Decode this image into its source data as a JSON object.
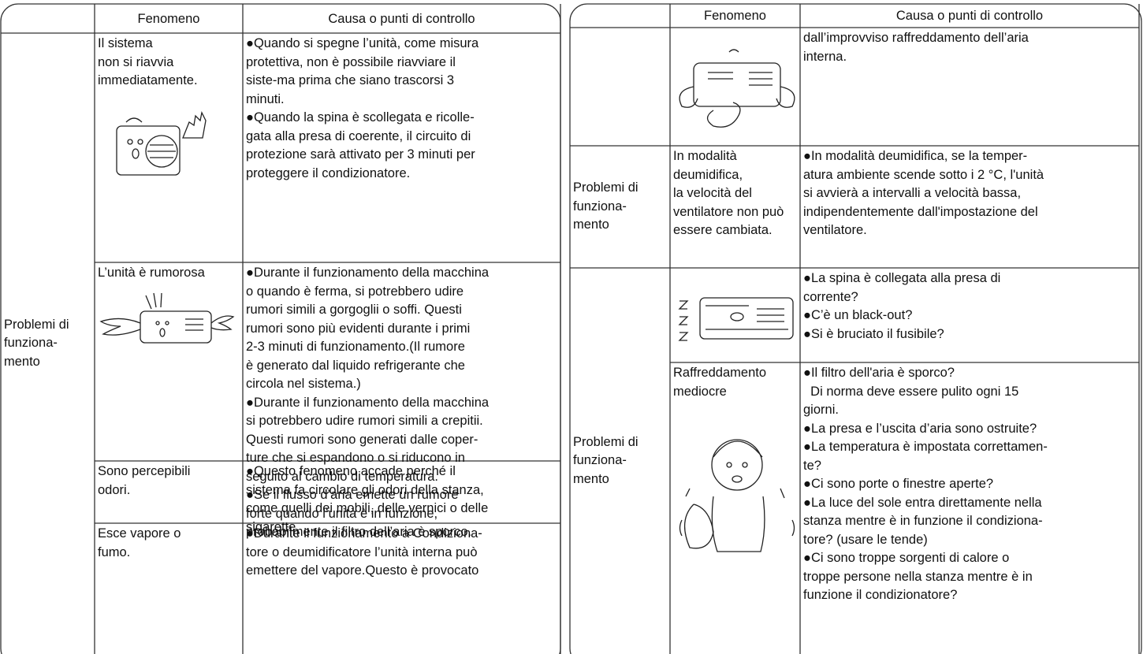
{
  "left_table": {
    "header": [
      "Fenomeno",
      "Causa o punti di controllo"
    ],
    "groups": [
      {
        "label": [
          "Problemi di",
          "funziona-",
          "mento"
        ],
        "rows": [
          {
            "phenomenon": [
              "Il sistema",
              "non si riavvia",
              "immediatamente."
            ],
            "cause": [
              "●Quando si spegne l’unità, come misura",
              "protettiva, non è possibile riavviare il",
              "siste-ma prima che siano trascorsi 3",
              "minuti.",
              "●Quando la spina è scollegata e ricolle-",
              "gata alla presa di coerente, il circuito di",
              "protezione sarà attivato per 3 minuti per",
              "proteggere il condizionatore."
            ]
          },
          {
            "phenomenon": [
              "L’unità è rumorosa"
            ],
            "cause": [
              "●Durante il funzionamento della macchina",
              "o quando è ferma, si potrebbero udire",
              "rumori simili a gorgoglii o soffi. Questi",
              "rumori sono più evidenti durante i primi",
              "2-3 minuti di funzionamento.(Il rumore",
              "è generato dal liquido refrigerante che",
              "circola nel sistema.)",
              "●Durante il funzionamento della macchina",
              "si potrebbero udire rumori simili a crepitii.",
              "Questi rumori sono generati dalle coper-",
              "ture che si espandono o si riducono in",
              "seguito al cambio di temperatura.",
              "●Se il flusso d’aria emette un rumore",
              "forte quando l’unità è in funzione,",
              "probabilmente il filtro dell’aria è sporco."
            ]
          },
          {
            "phenomenon": [
              "Sono percepibili",
              "odori."
            ],
            "cause": [
              "●Questo fenomeno accade perché il",
              "sistema fa circolare gli odori della stanza,",
              "come quelli dei mobili, delle vernici o delle",
              "sigarette."
            ]
          },
          {
            "phenomenon": [
              "Esce vapore o",
              "fumo."
            ],
            "cause": [
              "●Durante il funzionamento a Condiziona-",
              "tore o deumidificatore l’unità interna può",
              "emettere del vapore.Questo è provocato"
            ]
          }
        ]
      }
    ]
  },
  "right_table": {
    "header": [
      "Fenomeno",
      "Causa o punti di controllo"
    ],
    "groups": [
      {
        "rows": [
          {
            "cause": [
              "dall’improvviso raffreddamento dell’aria",
              "interna."
            ]
          }
        ]
      },
      {
        "label": [
          "Problemi di",
          "funziona-",
          "mento"
        ],
        "rows": [
          {
            "phenomenon": [
              "In modalità",
              "deumidifica,",
              "la velocità del",
              "ventilatore non può",
              "essere cambiata."
            ],
            "cause": [
              "●In modalità deumidifica, se la temper-",
              "atura ambiente scende sotto i 2 °C, l'unità",
              "si avvierà a intervalli a velocità bassa,",
              "indipendentemente dall'impostazione del",
              "ventilatore."
            ]
          }
        ]
      },
      {
        "label": [
          "Problemi di",
          "funziona-",
          "mento"
        ],
        "rows": [
          {
            "cause": [
              "●La spina è collegata alla presa di",
              "corrente?",
              "●C’è un black-out?",
              "●Si è bruciato il fusibile?"
            ]
          },
          {
            "phenomenon": [
              "Raffreddamento",
              "mediocre"
            ],
            "cause": [
              "●Il filtro dell'aria è sporco?",
              "  Di norma deve essere pulito ogni 15",
              "giorni.",
              "●La presa e l’uscita d’aria sono ostruite?",
              "●La temperatura è impostata correttamen-",
              "te?",
              "●Ci sono porte o finestre aperte?",
              "●La luce del sole entra direttamente nella",
              "stanza mentre è in funzione il condiziona-",
              "tore? (usare le tende)",
              "●Ci sono troppe sorgenti di calore o",
              "troppe persone nella stanza mentre è in",
              "funzione il condizionatore?"
            ]
          }
        ]
      }
    ]
  }
}
